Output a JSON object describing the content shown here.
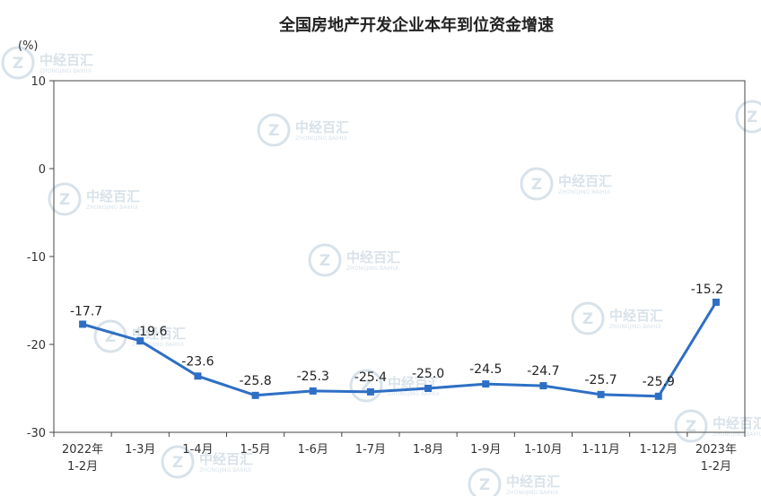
{
  "chart_data": {
    "type": "line",
    "title": "全国房地产开发企业本年到位资金增速",
    "unit_label": "(%)",
    "categories": [
      [
        "2022年",
        "1-2月"
      ],
      [
        "1-3月"
      ],
      [
        "1-4月"
      ],
      [
        "1-5月"
      ],
      [
        "1-6月"
      ],
      [
        "1-7月"
      ],
      [
        "1-8月"
      ],
      [
        "1-9月"
      ],
      [
        "1-10月"
      ],
      [
        "1-11月"
      ],
      [
        "1-12月"
      ],
      [
        "2023年",
        "1-2月"
      ]
    ],
    "values": [
      -17.7,
      -19.6,
      -23.6,
      -25.8,
      -25.3,
      -25.4,
      -25.0,
      -24.5,
      -24.7,
      -25.7,
      -25.9,
      -15.2
    ],
    "data_labels": [
      "-17.7",
      "-19.6",
      "-23.6",
      "-25.8",
      "-25.3",
      "-25.4",
      "-25.0",
      "-24.5",
      "-24.7",
      "-25.7",
      "-25.9",
      "-15.2"
    ],
    "yticks": [
      10,
      0,
      -10,
      -20,
      -30
    ],
    "ytick_labels": [
      "10",
      "0",
      "-10",
      "-20",
      "-30"
    ],
    "ylim": [
      -30,
      10
    ],
    "grid": false,
    "line_color": "#2e6fc4",
    "watermark": {
      "text": "中经百汇",
      "sub": "ZHONGJING BAIHUI"
    }
  }
}
